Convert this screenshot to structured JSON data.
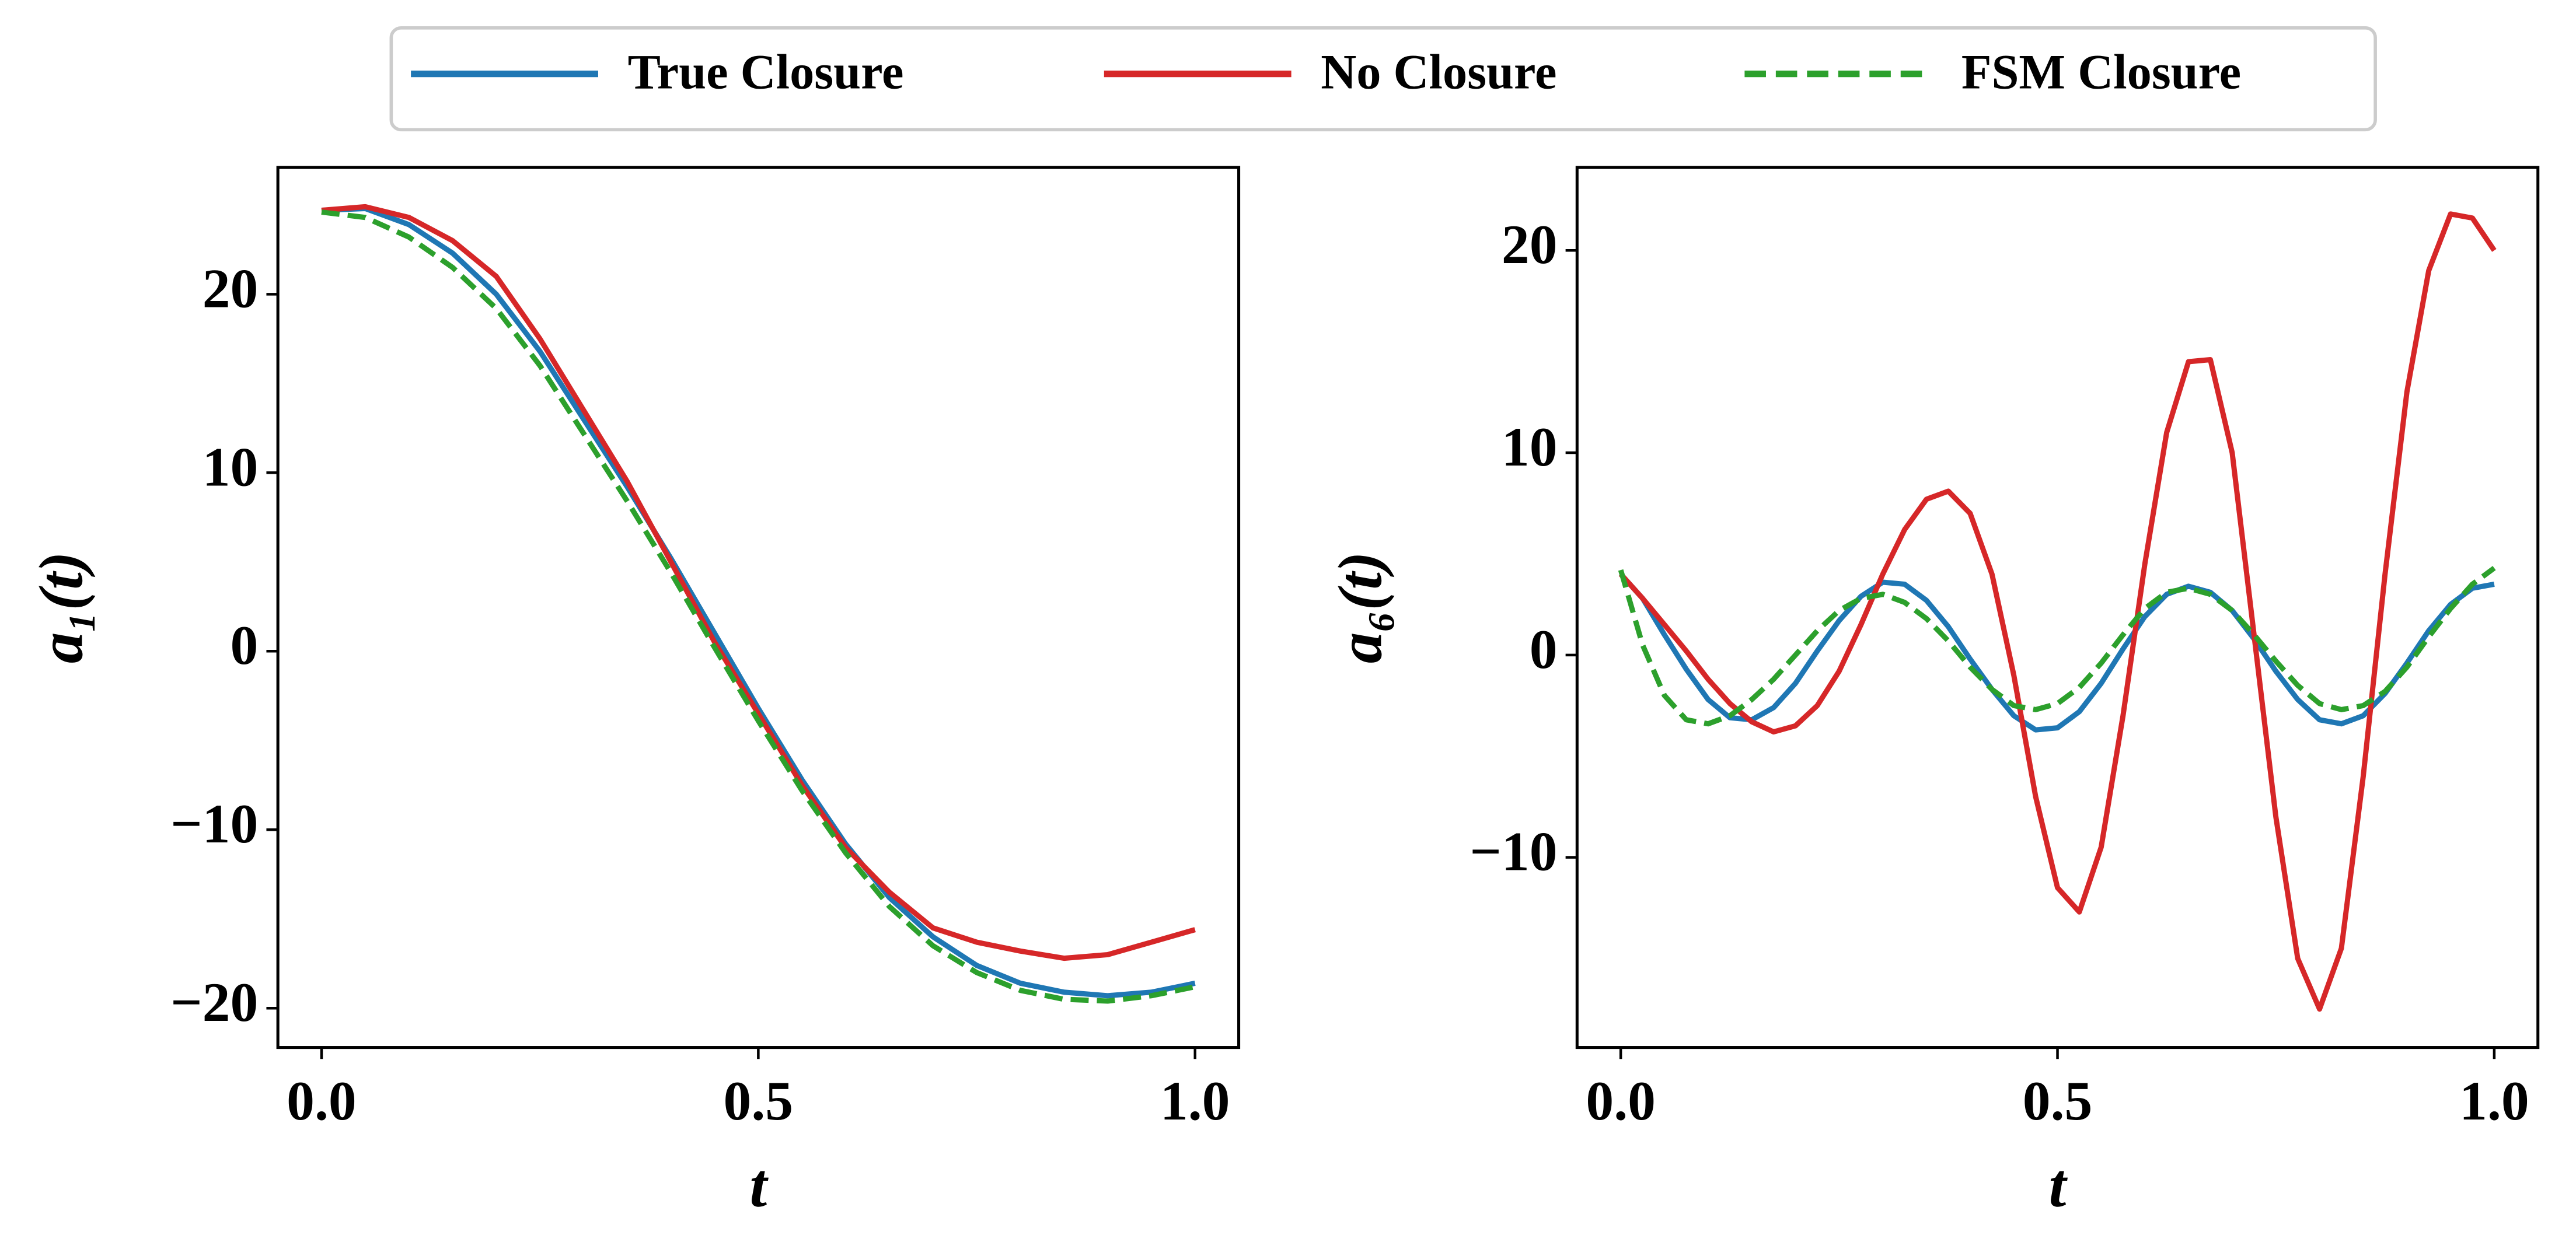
{
  "chart_data": [
    {
      "type": "line",
      "xlabel": "t",
      "ylabel": "a₁(t)",
      "x": [
        0,
        0.05,
        0.1,
        0.15,
        0.2,
        0.25,
        0.3,
        0.35,
        0.4,
        0.45,
        0.5,
        0.55,
        0.6,
        0.65,
        0.7,
        0.75,
        0.8,
        0.85,
        0.9,
        0.95,
        1.0
      ],
      "xlim": [
        -0.05,
        1.05
      ],
      "ylim": [
        -22.2,
        27.1
      ],
      "xticks": [
        {
          "value": 0,
          "label": "0.0"
        },
        {
          "value": 0.5,
          "label": "0.5"
        },
        {
          "value": 1,
          "label": "1.0"
        }
      ],
      "yticks": [
        {
          "value": -20,
          "label": "−20"
        },
        {
          "value": -10,
          "label": "−10"
        },
        0,
        10,
        20
      ],
      "series": [
        {
          "name": "True Closure",
          "color": "#1f77b4",
          "style": "solid",
          "values": [
            24.7,
            24.8,
            23.9,
            22.3,
            20,
            16.8,
            13.0,
            9.2,
            5.2,
            1,
            -3.2,
            -7.2,
            -10.8,
            -13.8,
            -16,
            -17.6,
            -18.6,
            -19.1,
            -19.3,
            -19.1,
            -18.6
          ]
        },
        {
          "name": "No Closure",
          "color": "#d62728",
          "style": "solid",
          "values": [
            24.7,
            24.9,
            24.3,
            23,
            21,
            17.5,
            13.5,
            9.5,
            5,
            0.5,
            -3.5,
            -7.5,
            -11,
            -13.5,
            -15.5,
            -16.3,
            -16.8,
            -17.2,
            -17.0,
            -16.3,
            -15.6
          ]
        },
        {
          "name": "FSM Closure",
          "color": "#2ca02c",
          "style": "dashed",
          "values": [
            24.6,
            24.3,
            23.2,
            21.5,
            19.2,
            16,
            12.2,
            8.4,
            4.4,
            0.2,
            -3.9,
            -7.8,
            -11.3,
            -14.3,
            -16.5,
            -18,
            -19,
            -19.5,
            -19.6,
            -19.3,
            -18.8
          ]
        }
      ]
    },
    {
      "type": "line",
      "xlabel": "t",
      "ylabel": "a₆(t)",
      "x": [
        0,
        0.025,
        0.05,
        0.075,
        0.1,
        0.125,
        0.15,
        0.175,
        0.2,
        0.225,
        0.25,
        0.275,
        0.3,
        0.325,
        0.35,
        0.375,
        0.4,
        0.425,
        0.45,
        0.475,
        0.5,
        0.525,
        0.55,
        0.575,
        0.6,
        0.625,
        0.65,
        0.675,
        0.7,
        0.725,
        0.75,
        0.775,
        0.8,
        0.825,
        0.85,
        0.875,
        0.9,
        0.925,
        0.95,
        0.975,
        1.0
      ],
      "xlim": [
        -0.05,
        1.05
      ],
      "ylim": [
        -19.4,
        24.1
      ],
      "xticks": [
        {
          "value": 0,
          "label": "0.0"
        },
        {
          "value": 0.5,
          "label": "0.5"
        },
        {
          "value": 1,
          "label": "1.0"
        }
      ],
      "yticks": [
        {
          "value": -10,
          "label": "−10"
        },
        0,
        10,
        20
      ],
      "series": [
        {
          "color": "#1f77b4",
          "style": "solid",
          "values": [
            4,
            2.8,
            1.0,
            -0.7,
            -2.2,
            -3.1,
            -3.2,
            -2.6,
            -1.4,
            0.2,
            1.7,
            2.9,
            3.6,
            3.5,
            2.7,
            1.4,
            -0.2,
            -1.7,
            -3,
            -3.7,
            -3.6,
            -2.8,
            -1.4,
            0.3,
            1.9,
            3,
            3.4,
            3.1,
            2.2,
            0.8,
            -0.8,
            -2.2,
            -3.2,
            -3.4,
            -3,
            -1.9,
            -0.4,
            1.2,
            2.5,
            3.3,
            3.5
          ]
        },
        {
          "color": "#d62728",
          "style": "solid",
          "values": [
            4,
            2.8,
            1.5,
            0.2,
            -1.2,
            -2.4,
            -3.3,
            -3.8,
            -3.5,
            -2.5,
            -0.8,
            1.5,
            4,
            6.2,
            7.7,
            8.1,
            7,
            4,
            -1,
            -7,
            -11.5,
            -12.7,
            -9.5,
            -3,
            4.5,
            11,
            14.5,
            14.6,
            10,
            1,
            -8,
            -15,
            -17.5,
            -14.5,
            -6,
            4,
            13,
            19,
            21.8,
            21.6,
            20
          ]
        },
        {
          "color": "#2ca02c",
          "style": "dashed",
          "values": [
            4.2,
            0.5,
            -2,
            -3.2,
            -3.4,
            -3,
            -2.2,
            -1.2,
            0,
            1.2,
            2.2,
            2.8,
            3,
            2.6,
            1.8,
            0.7,
            -0.6,
            -1.7,
            -2.5,
            -2.7,
            -2.4,
            -1.6,
            -0.4,
            1,
            2.3,
            3.1,
            3.3,
            3,
            2.2,
            1,
            -0.3,
            -1.5,
            -2.4,
            -2.7,
            -2.5,
            -1.8,
            -0.6,
            0.9,
            2.3,
            3.5,
            4.3
          ]
        }
      ]
    }
  ]
}
